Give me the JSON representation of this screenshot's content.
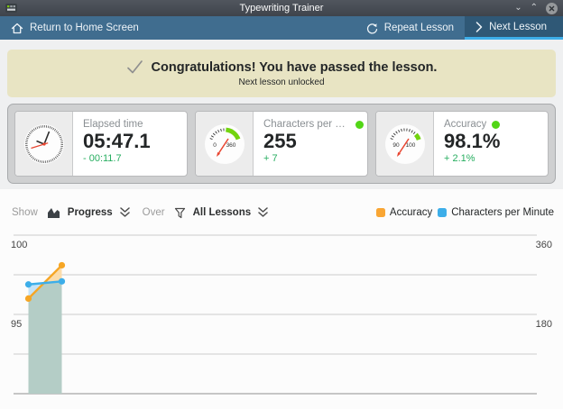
{
  "window": {
    "title": "Typewriting Trainer"
  },
  "toolbar": {
    "home_label": "Return to Home Screen",
    "repeat_label": "Repeat Lesson",
    "next_label": "Next Lesson"
  },
  "banner": {
    "title": "Congratulations! You have passed the lesson.",
    "subtitle": "Next lesson unlocked"
  },
  "stats": {
    "cards": [
      {
        "label": "Elapsed time",
        "value": "05:47.1",
        "delta": "- 00:11.7"
      },
      {
        "label": "Characters per Min...",
        "value": "255",
        "delta": "+ 7",
        "gauge": {
          "min_label": "0",
          "max_label": "360"
        }
      },
      {
        "label": "Accuracy",
        "value": "98.1%",
        "delta": "+ 2.1%",
        "gauge": {
          "min_label": "90",
          "max_label": "100"
        }
      }
    ]
  },
  "controls": {
    "show_label": "Show",
    "show_value": "Progress",
    "over_label": "Over",
    "over_value": "All Lessons"
  },
  "legend": [
    {
      "label": "Accuracy",
      "color": "#f9a634"
    },
    {
      "label": "Characters per Minute",
      "color": "#3daee9"
    }
  ],
  "colors": {
    "accent": "#3daee9",
    "toolbar_bg": "#406d8f",
    "banner_bg": "#e8e4c3",
    "success_green": "#27ae60",
    "indicator_green": "#52d616",
    "overlap_band": "#b4cdc6"
  },
  "chart_data": {
    "type": "line",
    "x": [
      1,
      2
    ],
    "series": [
      {
        "name": "Accuracy",
        "axis": "left",
        "color": "#f6a625",
        "fill": "#fbdcab",
        "values": [
          96.0,
          98.1
        ]
      },
      {
        "name": "Characters per Minute",
        "axis": "right",
        "color": "#3daee9",
        "fill": "#c4e3f8",
        "values": [
          248,
          255
        ]
      }
    ],
    "left_axis": {
      "min": 90,
      "max": 100,
      "ticks_shown": [
        100,
        95
      ]
    },
    "right_axis": {
      "min": 0,
      "max": 360,
      "ticks_shown": [
        360,
        180
      ]
    },
    "gridline_count": 5,
    "overlap_fill": "#b4cdc6",
    "legend_position": "top-right",
    "grid": true
  }
}
